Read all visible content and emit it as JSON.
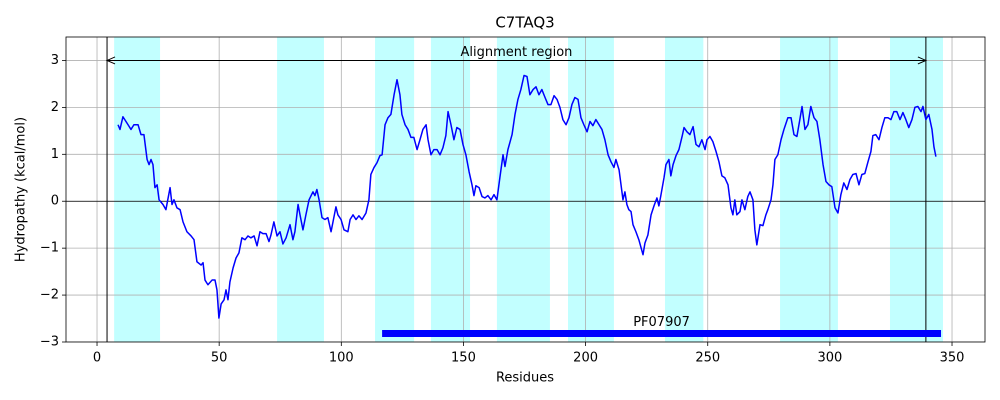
{
  "chart_data": {
    "type": "line",
    "title": "C7TAQ3",
    "x_label": "Residues",
    "y_label": "Hydropathy (kcal/mol)",
    "xlim": [
      -12.7,
      363.5
    ],
    "ylim": [
      -3,
      3.5
    ],
    "xticks": [
      0,
      50,
      100,
      150,
      200,
      250,
      300,
      350
    ],
    "yticks": [
      {
        "value": -3,
        "label": "−3"
      },
      {
        "value": -2,
        "label": "−2"
      },
      {
        "value": -1,
        "label": "−1"
      },
      0,
      1,
      2,
      3
    ],
    "grid": true,
    "hline": 0,
    "regions": {
      "color": "#c2ffff",
      "spans": [
        [
          7.0,
          25.8
        ],
        [
          73.7,
          92.9
        ],
        [
          113.8,
          129.8
        ],
        [
          136.7,
          152.7
        ],
        [
          163.7,
          185.4
        ],
        [
          192.8,
          211.6
        ],
        [
          232.5,
          248.2
        ],
        [
          279.6,
          303.3
        ],
        [
          324.6,
          346.3
        ]
      ]
    },
    "vlines": [
      4.1,
      339.3
    ],
    "annotation": {
      "text": "Alignment region",
      "start": 4.1,
      "end": 339.3,
      "y": 3
    },
    "domain": {
      "name": "PF07907",
      "start": 116.7,
      "end": 345.5,
      "y": -2.82,
      "color": "#0000ff"
    },
    "x": [
      8.6,
      9.4,
      10.6,
      12.7,
      13.9,
      15.1,
      16.8,
      18.0,
      19.2,
      20.5,
      21.3,
      22.1,
      22.9,
      23.7,
      24.6,
      25.4,
      27.0,
      28.2,
      29.9,
      30.7,
      31.5,
      32.7,
      34.0,
      35.2,
      36.8,
      38.5,
      39.7,
      40.9,
      42.6,
      43.4,
      44.2,
      45.4,
      47.1,
      48.3,
      49.1,
      49.9,
      50.8,
      52.0,
      52.8,
      53.6,
      54.4,
      55.7,
      56.9,
      58.1,
      59.3,
      60.6,
      61.8,
      63.0,
      64.3,
      65.5,
      66.7,
      67.9,
      69.2,
      70.4,
      71.2,
      72.4,
      73.7,
      74.9,
      76.1,
      77.4,
      79.0,
      80.2,
      81.0,
      82.3,
      83.1,
      84.3,
      85.5,
      86.8,
      88.4,
      89.2,
      90.0,
      90.9,
      92.1,
      93.3,
      94.5,
      95.8,
      96.6,
      97.8,
      98.6,
      99.9,
      101.1,
      102.7,
      103.6,
      104.8,
      106.0,
      107.2,
      108.5,
      110.1,
      111.3,
      112.1,
      113.4,
      114.6,
      115.8,
      116.7,
      117.9,
      119.1,
      120.3,
      121.6,
      122.8,
      124.0,
      124.8,
      126.1,
      127.3,
      128.5,
      129.7,
      131.0,
      132.2,
      133.4,
      134.7,
      135.5,
      136.7,
      137.9,
      139.2,
      140.4,
      141.6,
      142.8,
      143.7,
      144.9,
      146.1,
      147.3,
      148.6,
      149.8,
      151.0,
      152.3,
      153.5,
      154.3,
      155.1,
      156.4,
      157.6,
      158.8,
      160.0,
      161.3,
      162.5,
      163.7,
      164.9,
      166.2,
      167.0,
      168.2,
      169.9,
      171.1,
      172.3,
      173.5,
      174.8,
      176.0,
      177.2,
      178.5,
      179.7,
      180.9,
      182.1,
      183.4,
      184.6,
      185.8,
      187.1,
      188.3,
      189.5,
      190.7,
      192.0,
      193.2,
      194.4,
      195.6,
      196.9,
      198.1,
      199.3,
      200.6,
      201.8,
      203.0,
      204.2,
      205.5,
      206.7,
      207.9,
      209.2,
      210.4,
      211.6,
      212.4,
      213.7,
      214.5,
      215.3,
      216.1,
      216.9,
      217.7,
      218.6,
      219.4,
      220.6,
      221.8,
      222.7,
      223.5,
      224.3,
      225.5,
      226.8,
      228.0,
      229.2,
      230.0,
      230.8,
      232.1,
      232.9,
      234.1,
      234.9,
      235.8,
      237.0,
      238.2,
      239.5,
      240.3,
      241.5,
      242.7,
      244.0,
      245.2,
      246.4,
      247.6,
      248.9,
      249.7,
      250.9,
      252.1,
      253.4,
      254.6,
      255.8,
      257.0,
      258.3,
      259.5,
      260.3,
      261.1,
      261.9,
      263.2,
      264.0,
      265.2,
      266.4,
      267.3,
      268.5,
      269.3,
      270.1,
      271.4,
      272.6,
      273.8,
      274.6,
      275.9,
      276.7,
      277.5,
      278.7,
      280.0,
      281.2,
      282.8,
      284.1,
      285.3,
      286.5,
      287.7,
      288.6,
      289.8,
      291.0,
      292.2,
      293.5,
      294.7,
      295.9,
      297.2,
      298.4,
      299.6,
      300.8,
      302.1,
      303.3,
      304.5,
      305.7,
      307.0,
      308.2,
      309.4,
      310.7,
      311.9,
      313.1,
      314.3,
      315.6,
      316.8,
      317.6,
      318.8,
      320.1,
      321.3,
      322.5,
      323.8,
      325.0,
      326.2,
      327.4,
      328.7,
      329.9,
      331.1,
      332.3,
      333.6,
      334.8,
      336.0,
      337.3,
      338.1,
      339.3,
      340.5,
      341.8,
      342.6,
      343.4
    ],
    "series": [
      {
        "color": "#0000ff",
        "values": [
          1.63,
          1.53,
          1.8,
          1.63,
          1.53,
          1.63,
          1.63,
          1.42,
          1.42,
          0.89,
          0.78,
          0.89,
          0.78,
          0.29,
          0.35,
          0.03,
          -0.07,
          -0.18,
          0.29,
          -0.07,
          0.03,
          -0.14,
          -0.18,
          -0.44,
          -0.65,
          -0.74,
          -0.82,
          -1.29,
          -1.36,
          -1.31,
          -1.68,
          -1.78,
          -1.68,
          -1.68,
          -1.89,
          -2.49,
          -2.19,
          -2.1,
          -1.89,
          -2.1,
          -1.72,
          -1.42,
          -1.21,
          -1.1,
          -0.78,
          -0.82,
          -0.74,
          -0.78,
          -0.74,
          -0.95,
          -0.65,
          -0.69,
          -0.69,
          -0.86,
          -0.72,
          -0.44,
          -0.74,
          -0.65,
          -0.91,
          -0.78,
          -0.5,
          -0.82,
          -0.65,
          -0.07,
          -0.29,
          -0.61,
          -0.29,
          0.03,
          0.2,
          0.12,
          0.25,
          0.03,
          -0.35,
          -0.39,
          -0.35,
          -0.65,
          -0.44,
          -0.12,
          -0.29,
          -0.39,
          -0.61,
          -0.65,
          -0.39,
          -0.29,
          -0.39,
          -0.31,
          -0.39,
          -0.25,
          0.03,
          0.57,
          0.72,
          0.82,
          0.97,
          0.99,
          1.63,
          1.78,
          1.85,
          2.27,
          2.59,
          2.27,
          1.85,
          1.63,
          1.53,
          1.36,
          1.36,
          1.1,
          1.31,
          1.53,
          1.63,
          1.31,
          0.99,
          1.1,
          1.1,
          0.99,
          1.14,
          1.4,
          1.91,
          1.63,
          1.31,
          1.57,
          1.53,
          1.21,
          0.99,
          0.63,
          0.35,
          0.12,
          0.33,
          0.29,
          0.1,
          0.07,
          0.12,
          0.03,
          0.14,
          0.03,
          0.5,
          0.99,
          0.74,
          1.1,
          1.42,
          1.85,
          2.17,
          2.38,
          2.68,
          2.66,
          2.27,
          2.38,
          2.44,
          2.27,
          2.38,
          2.21,
          2.06,
          2.06,
          2.25,
          2.17,
          2.0,
          1.74,
          1.63,
          1.78,
          2.06,
          2.21,
          2.17,
          1.78,
          1.63,
          1.48,
          1.7,
          1.61,
          1.74,
          1.63,
          1.53,
          1.31,
          0.99,
          0.84,
          0.72,
          0.89,
          0.67,
          0.35,
          0.03,
          0.2,
          -0.07,
          -0.18,
          -0.22,
          -0.5,
          -0.65,
          -0.82,
          -0.99,
          -1.14,
          -0.89,
          -0.72,
          -0.29,
          -0.1,
          0.07,
          -0.1,
          0.12,
          0.5,
          0.78,
          0.89,
          0.54,
          0.78,
          0.97,
          1.1,
          1.38,
          1.57,
          1.48,
          1.42,
          1.59,
          1.21,
          1.16,
          1.31,
          1.1,
          1.31,
          1.38,
          1.27,
          1.06,
          0.84,
          0.54,
          0.5,
          0.35,
          -0.14,
          -0.29,
          0.03,
          -0.29,
          -0.22,
          0.03,
          -0.18,
          0.1,
          0.2,
          0.03,
          -0.61,
          -0.93,
          -0.5,
          -0.52,
          -0.29,
          -0.18,
          0.03,
          0.35,
          0.89,
          0.99,
          1.31,
          1.53,
          1.78,
          1.78,
          1.42,
          1.38,
          1.74,
          2.02,
          1.53,
          1.63,
          2.02,
          1.78,
          1.7,
          1.31,
          0.78,
          0.42,
          0.35,
          0.31,
          -0.14,
          -0.25,
          0.14,
          0.39,
          0.25,
          0.46,
          0.57,
          0.59,
          0.35,
          0.57,
          0.59,
          0.84,
          1.06,
          1.4,
          1.42,
          1.31,
          1.57,
          1.78,
          1.78,
          1.74,
          1.91,
          1.91,
          1.74,
          1.89,
          1.74,
          1.57,
          1.74,
          2.0,
          2.02,
          1.91,
          2.02,
          1.74,
          1.85,
          1.53,
          1.16,
          0.95
        ]
      }
    ]
  }
}
